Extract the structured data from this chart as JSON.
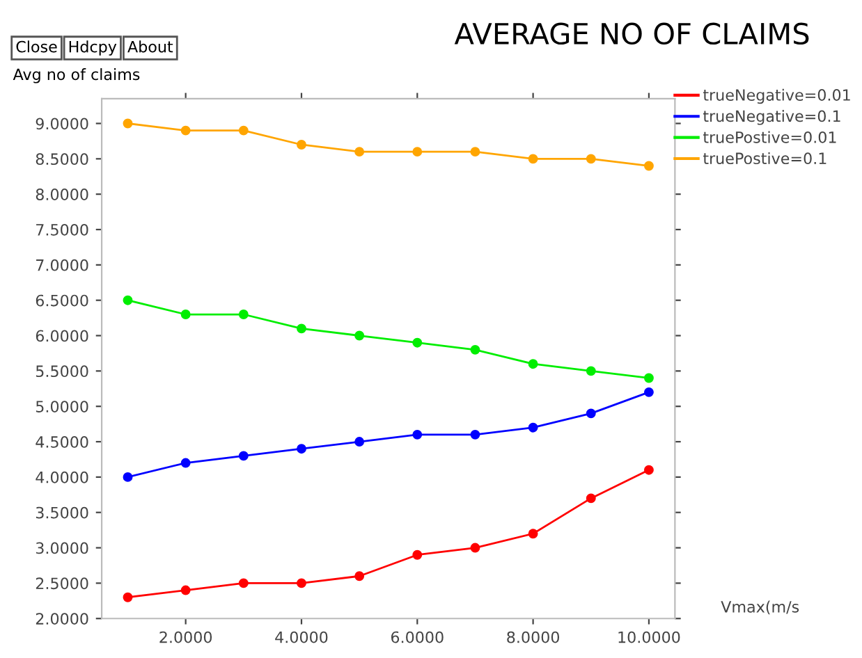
{
  "chart_data": {
    "type": "line",
    "title": "AVERAGE NO OF CLAIMS",
    "ylabel": "Avg no of claims",
    "xlabel": "Vmax(m/s",
    "annotations": [
      "Close",
      "Hdcpy",
      "About"
    ],
    "x": [
      1,
      2,
      3,
      4,
      5,
      6,
      7,
      8,
      9,
      10
    ],
    "series": [
      {
        "name": "trueNegative=0.01",
        "color": "#ff0000",
        "values": [
          2.3,
          2.4,
          2.5,
          2.5,
          2.6,
          2.9,
          3.0,
          3.2,
          3.7,
          4.1
        ]
      },
      {
        "name": "trueNegative=0.1",
        "color": "#0000ff",
        "values": [
          4.0,
          4.2,
          4.3,
          4.4,
          4.5,
          4.6,
          4.6,
          4.7,
          4.9,
          5.2
        ]
      },
      {
        "name": "truePostive=0.01",
        "color": "#00ee00",
        "values": [
          6.5,
          6.3,
          6.3,
          6.1,
          6.0,
          5.9,
          5.8,
          5.6,
          5.5,
          5.4
        ]
      },
      {
        "name": "truePostive=0.1",
        "color": "#ffa500",
        "values": [
          9.0,
          8.9,
          8.9,
          8.7,
          8.6,
          8.6,
          8.6,
          8.5,
          8.5,
          8.4
        ]
      }
    ],
    "xlim": [
      0.55,
      10.45
    ],
    "ylim": [
      2.0,
      9.35
    ],
    "xticks": [
      {
        "value": 2,
        "label": "2.0000"
      },
      {
        "value": 4,
        "label": "4.0000"
      },
      {
        "value": 6,
        "label": "6.0000"
      },
      {
        "value": 8,
        "label": "8.0000"
      },
      {
        "value": 10,
        "label": "10.0000"
      }
    ],
    "yticks": [
      {
        "value": 2.0,
        "label": "2.0000"
      },
      {
        "value": 2.5,
        "label": "2.5000"
      },
      {
        "value": 3.0,
        "label": "3.0000"
      },
      {
        "value": 3.5,
        "label": "3.5000"
      },
      {
        "value": 4.0,
        "label": "4.0000"
      },
      {
        "value": 4.5,
        "label": "4.5000"
      },
      {
        "value": 5.0,
        "label": "5.0000"
      },
      {
        "value": 5.5,
        "label": "5.5000"
      },
      {
        "value": 6.0,
        "label": "6.0000"
      },
      {
        "value": 6.5,
        "label": "6.5000"
      },
      {
        "value": 7.0,
        "label": "7.0000"
      },
      {
        "value": 7.5,
        "label": "7.5000"
      },
      {
        "value": 8.0,
        "label": "8.0000"
      },
      {
        "value": 8.5,
        "label": "8.5000"
      },
      {
        "value": 9.0,
        "label": "9.0000"
      }
    ],
    "marker": "circle",
    "line_style": "solid",
    "grid": false,
    "legend": "right"
  }
}
